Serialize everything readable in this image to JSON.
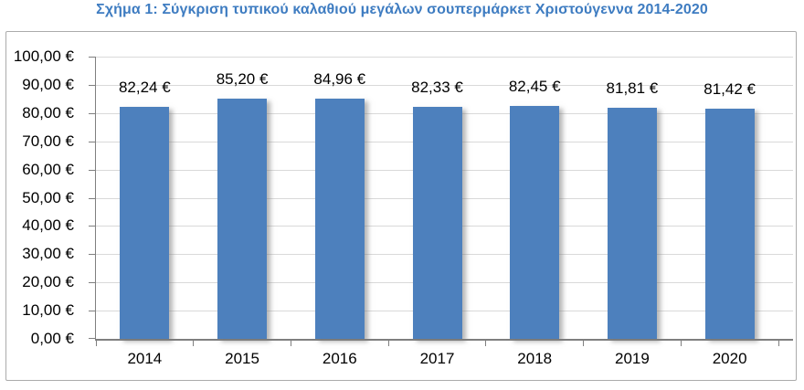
{
  "title": "Σχήμα 1: Σύγκριση τυπικού καλαθιού μεγάλων σουπερμάρκετ Χριστούγεννα 2014-2020",
  "chart_data": {
    "type": "bar",
    "title": "Σχήμα 1: Σύγκριση τυπικού καλαθιού μεγάλων σουπερμάρκετ Χριστούγεννα 2014-2020",
    "categories": [
      "2014",
      "2015",
      "2016",
      "2017",
      "2018",
      "2019",
      "2020"
    ],
    "values": [
      82.24,
      85.2,
      84.96,
      82.33,
      82.45,
      81.81,
      81.42
    ],
    "value_labels": [
      "82,24 €",
      "85,20 €",
      "84,96 €",
      "82,33 €",
      "82,45 €",
      "81,81 €",
      "81,42 €"
    ],
    "xlabel": "",
    "ylabel": "",
    "ylim": [
      0,
      100
    ],
    "y_step": 10,
    "y_tick_labels": [
      "0,00 €",
      "10,00 €",
      "20,00 €",
      "30,00 €",
      "40,00 €",
      "50,00 €",
      "60,00 €",
      "70,00 €",
      "80,00 €",
      "90,00 €",
      "100,00 €"
    ],
    "grid": "horizontal",
    "legend": "none",
    "bar_color": "#4D80BD"
  },
  "style": {
    "title_color": "#3E7CC1",
    "bar_color": "#4D80BD",
    "gridline_color": "#D9D9D9",
    "axis_color": "#7F7F7F",
    "frame_border_color": "#ABABAB",
    "text_color": "#000000",
    "background_color": "#FFFFFF"
  }
}
